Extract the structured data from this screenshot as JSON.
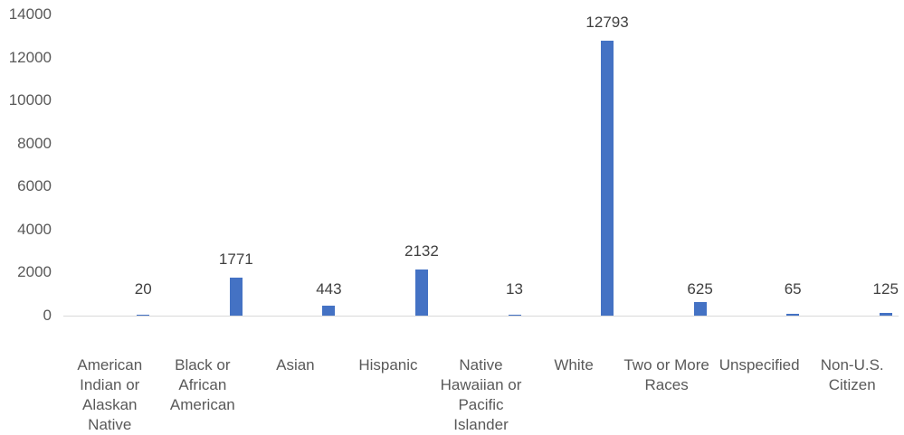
{
  "chart_data": {
    "type": "bar",
    "title": "",
    "xlabel": "",
    "ylabel": "",
    "ylim": [
      0,
      14000
    ],
    "yticks": [
      0,
      2000,
      4000,
      6000,
      8000,
      10000,
      12000,
      14000
    ],
    "grid": false,
    "legend": null,
    "bar_color": "#4472C4",
    "axis_color": "#D9D9D9",
    "categories": [
      "American Indian or Alaskan Native",
      "Black or African American",
      "Asian",
      "Hispanic",
      "Native Hawaiian or Pacific Islander",
      "White",
      "Two or More Races",
      "Unspecified",
      "Non-U.S. Citizen"
    ],
    "values": [
      20,
      1771,
      443,
      2132,
      13,
      12793,
      625,
      65,
      125
    ],
    "data_labels": [
      "20",
      "1771",
      "443",
      "2132",
      "13",
      "12793",
      "625",
      "65",
      "125"
    ]
  },
  "yaxis": {
    "tick_labels": [
      "14000",
      "12000",
      "10000",
      "8000",
      "6000",
      "4000",
      "2000",
      "0"
    ]
  }
}
